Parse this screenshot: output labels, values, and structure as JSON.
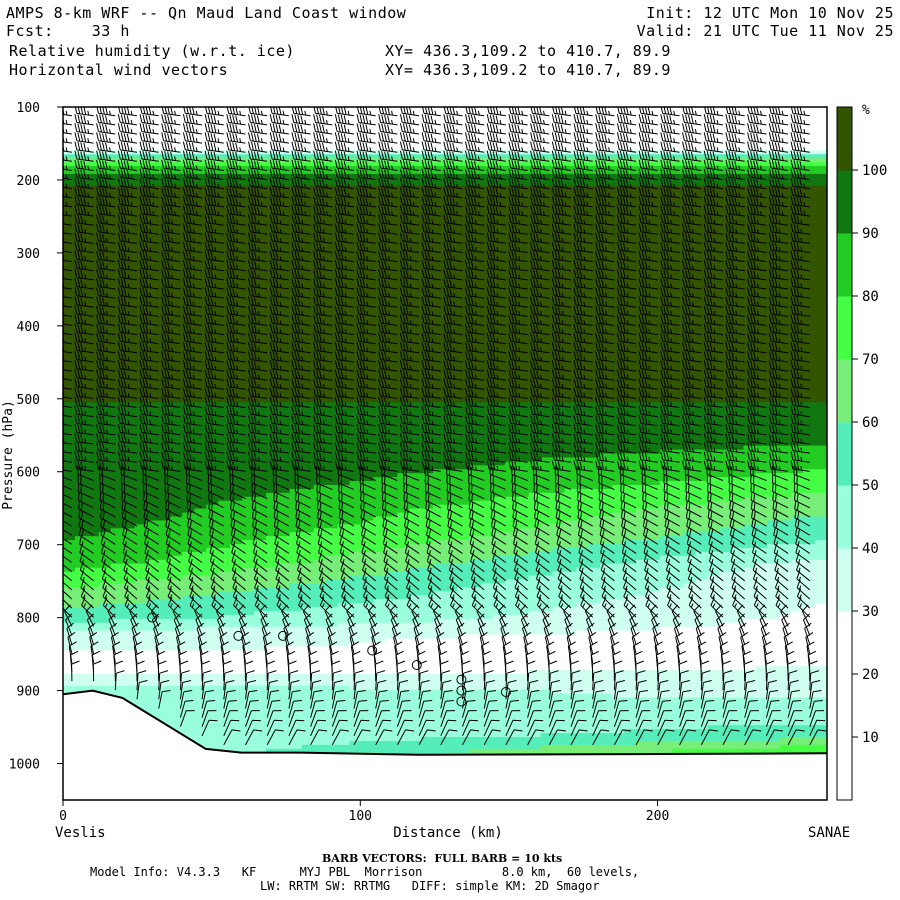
{
  "header": {
    "title": "AMPS 8-km WRF -- Qn Maud Land Coast window",
    "fcst_label": "Fcst:",
    "fcst_value": "33 h",
    "init": "Init: 12 UTC Mon 10 Nov 25",
    "valid": "Valid: 21 UTC Tue 11 Nov 25",
    "field1": "Relative humidity (w.r.t. ice)",
    "field2": "Horizontal wind vectors",
    "xy1": "XY= 436.3,109.2 to 410.7, 89.9",
    "xy2": "XY= 436.3,109.2 to 410.7, 89.9"
  },
  "footer": {
    "barb_note": "BARB VECTORS:  FULL BARB = 10 kts",
    "model_info_label": "Model Info:",
    "model_version": "V4.3.3",
    "cu": "KF",
    "pbl": "MYJ PBL",
    "mp": "Morrison",
    "grid": "8.0 km,  60 levels,",
    "rad": "LW: RRTM SW: RRTMG",
    "diff": "DIFF: simple KM: 2D Smagor"
  },
  "chart_data": {
    "type": "heatmap",
    "title": "Relative humidity (w.r.t. ice)",
    "overlay": "Horizontal wind vectors (barbs)",
    "xlabel": "Distance (km)",
    "ylabel": "Pressure (hPa)",
    "xlim": [
      0,
      257
    ],
    "ylim": [
      1050,
      100
    ],
    "x_ticks": [
      0,
      100,
      200
    ],
    "y_ticks": [
      100,
      200,
      300,
      400,
      500,
      600,
      700,
      800,
      900,
      1000
    ],
    "x_left_label": "Veslis",
    "x_right_label": "SANAE",
    "colorbar": {
      "unit": "%",
      "tick_labels": [
        "10",
        "20",
        "30",
        "40",
        "50",
        "60",
        "70",
        "80",
        "90",
        "100"
      ],
      "levels": [
        0,
        10,
        20,
        30,
        40,
        50,
        60,
        70,
        80,
        90,
        100,
        110
      ],
      "colors": [
        "#ffffff",
        "#ffffff",
        "#ffffff",
        "#cffff0",
        "#99ffdd",
        "#55eebb",
        "#77ee77",
        "#44ff44",
        "#22cc22",
        "#117711",
        "#335500"
      ]
    },
    "rh_profile_west": [
      {
        "p": 100,
        "rh": 10
      },
      {
        "p": 150,
        "rh": 15
      },
      {
        "p": 165,
        "rh": 45
      },
      {
        "p": 175,
        "rh": 75
      },
      {
        "p": 190,
        "rh": 90
      },
      {
        "p": 205,
        "rh": 100
      },
      {
        "p": 600,
        "rh": 100
      },
      {
        "p": 665,
        "rh": 95
      },
      {
        "p": 725,
        "rh": 85
      },
      {
        "p": 760,
        "rh": 70
      },
      {
        "p": 800,
        "rh": 55
      },
      {
        "p": 825,
        "rh": 35
      },
      {
        "p": 870,
        "rh": 25
      },
      {
        "p": 900,
        "rh": 45
      },
      {
        "p": 920,
        "rh": 40
      }
    ],
    "rh_profile_east": [
      {
        "p": 100,
        "rh": 10
      },
      {
        "p": 150,
        "rh": 15
      },
      {
        "p": 165,
        "rh": 45
      },
      {
        "p": 175,
        "rh": 75
      },
      {
        "p": 190,
        "rh": 90
      },
      {
        "p": 210,
        "rh": 100
      },
      {
        "p": 505,
        "rh": 100
      },
      {
        "p": 545,
        "rh": 95
      },
      {
        "p": 580,
        "rh": 85
      },
      {
        "p": 615,
        "rh": 75
      },
      {
        "p": 650,
        "rh": 62
      },
      {
        "p": 690,
        "rh": 52
      },
      {
        "p": 730,
        "rh": 35
      },
      {
        "p": 830,
        "rh": 25
      },
      {
        "p": 880,
        "rh": 32
      },
      {
        "p": 920,
        "rh": 42
      },
      {
        "p": 960,
        "rh": 55
      },
      {
        "p": 985,
        "rh": 80
      }
    ],
    "terrain_surface": [
      {
        "x": 0,
        "p": 905
      },
      {
        "x": 10,
        "p": 900
      },
      {
        "x": 20,
        "p": 910
      },
      {
        "x": 30,
        "p": 935
      },
      {
        "x": 40,
        "p": 960
      },
      {
        "x": 48,
        "p": 980
      },
      {
        "x": 60,
        "p": 985
      },
      {
        "x": 80,
        "p": 985
      },
      {
        "x": 120,
        "p": 988
      },
      {
        "x": 200,
        "p": 987
      },
      {
        "x": 257,
        "p": 986
      }
    ],
    "calm_markers": [
      {
        "x": 30,
        "p": 800
      },
      {
        "x": 59,
        "p": 825
      },
      {
        "x": 74,
        "p": 825
      },
      {
        "x": 104,
        "p": 845
      },
      {
        "x": 119,
        "p": 865
      },
      {
        "x": 134,
        "p": 885
      },
      {
        "x": 134,
        "p": 900
      },
      {
        "x": 134,
        "p": 915
      },
      {
        "x": 149,
        "p": 902
      }
    ]
  }
}
